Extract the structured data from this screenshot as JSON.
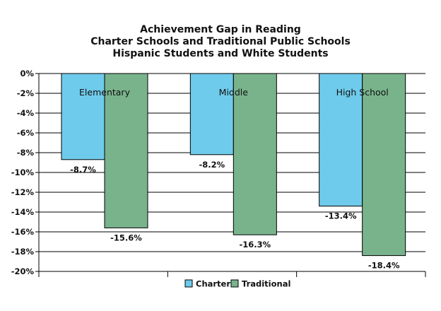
{
  "title_lines": [
    "Achievement Gap in Reading",
    "Charter Schools and Traditional Public Schools",
    "Hispanic Students and White Students"
  ],
  "chart_data": {
    "type": "bar",
    "categories": [
      "Elementary",
      "Middle",
      "High School"
    ],
    "series": [
      {
        "name": "Charter",
        "values": [
          -8.7,
          -8.2,
          -13.4
        ],
        "labels": [
          "-8.7%",
          "-8.2%",
          "-13.4%"
        ],
        "color": "#6fcbeb"
      },
      {
        "name": "Traditional",
        "values": [
          -15.6,
          -16.3,
          -18.4
        ],
        "labels": [
          "-15.6%",
          "-16.3%",
          "-18.4%"
        ],
        "color": "#78b38c"
      }
    ],
    "ylim": [
      -20,
      0
    ],
    "yticks": [
      0,
      -2,
      -4,
      -6,
      -8,
      -10,
      -12,
      -14,
      -16,
      -18,
      -20
    ],
    "ytick_labels": [
      "0%",
      "-2%",
      "-4%",
      "-6%",
      "-8%",
      "-10%",
      "-12%",
      "-14%",
      "-16%",
      "-18%",
      "-20%"
    ],
    "grid": true,
    "legend_position": "bottom"
  }
}
